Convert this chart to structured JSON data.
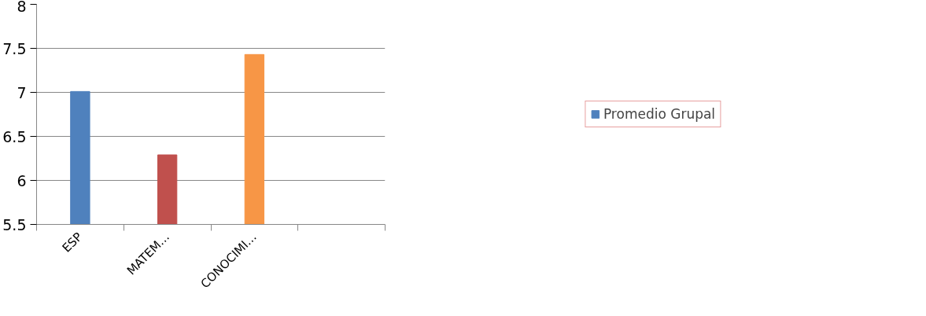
{
  "chart_data": {
    "type": "bar",
    "categories": [
      "ESP",
      "MATEM…",
      "CONOCIMI…",
      null
    ],
    "series": [
      {
        "name": "Promedio Grupal",
        "colors": [
          "#4f81bd",
          "#c0504d",
          "#f79646",
          null
        ],
        "values": [
          7.01,
          6.29,
          7.43,
          null
        ]
      }
    ],
    "ylim": [
      5.5,
      8
    ],
    "yticks": [
      5.5,
      6,
      6.5,
      7,
      7.5,
      8
    ],
    "grid": "y",
    "legend": "right"
  }
}
